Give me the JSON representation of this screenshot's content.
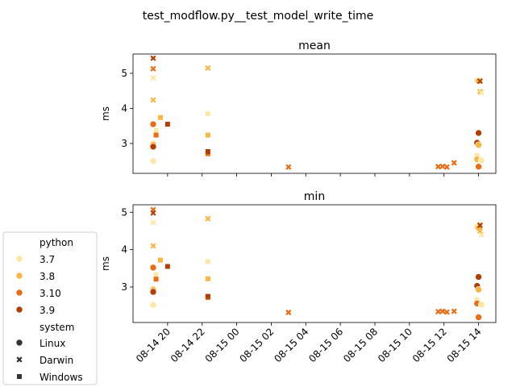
{
  "figure_title": "test_modflow.py__test_model_write_time",
  "colors": {
    "3.7": "#fde7a4",
    "3.8": "#fbb540",
    "3.10": "#ea6c14",
    "3.9": "#b33e03"
  },
  "legend": {
    "python_title": "python",
    "python_entries": [
      "3.7",
      "3.8",
      "3.10",
      "3.9"
    ],
    "system_title": "system",
    "system_entries": [
      {
        "label": "Linux",
        "marker": "circle"
      },
      {
        "label": "Darwin",
        "marker": "x"
      },
      {
        "label": "Windows",
        "marker": "square"
      }
    ]
  },
  "chart_data": [
    {
      "type": "scatter",
      "title": "mean",
      "ylabel": "ms",
      "xlabel": "",
      "x_axis": "datetime",
      "xlim": [
        "2023-08-14 18:00",
        "2023-08-15 15:00"
      ],
      "ylim": [
        2.15,
        5.55
      ],
      "yticks": [
        3,
        4,
        5
      ],
      "xticks": [
        "08-14 20",
        "08-14 22",
        "08-15 00",
        "08-15 02",
        "08-15 04",
        "08-15 06",
        "08-15 08",
        "08-15 10",
        "08-15 12",
        "08-15 14"
      ],
      "show_xtick_labels": false,
      "grid": false,
      "points": [
        {
          "x": "2023-08-14 19:10",
          "y": 2.5,
          "python": "3.7",
          "system": "Linux"
        },
        {
          "x": "2023-08-14 19:10",
          "y": 3.0,
          "python": "3.7",
          "system": "Linux"
        },
        {
          "x": "2023-08-14 19:10",
          "y": 2.97,
          "python": "3.8",
          "system": "Linux"
        },
        {
          "x": "2023-08-14 19:10",
          "y": 3.55,
          "python": "3.10",
          "system": "Linux"
        },
        {
          "x": "2023-08-14 19:10",
          "y": 2.91,
          "python": "3.9",
          "system": "Linux"
        },
        {
          "x": "2023-08-14 19:10",
          "y": 4.87,
          "python": "3.7",
          "system": "Darwin"
        },
        {
          "x": "2023-08-14 19:10",
          "y": 4.24,
          "python": "3.8",
          "system": "Darwin"
        },
        {
          "x": "2023-08-14 19:10",
          "y": 5.13,
          "python": "3.10",
          "system": "Darwin"
        },
        {
          "x": "2023-08-14 19:10",
          "y": 5.43,
          "python": "3.9",
          "system": "Darwin"
        },
        {
          "x": "2023-08-14 19:20",
          "y": 3.37,
          "python": "3.7",
          "system": "Windows"
        },
        {
          "x": "2023-08-14 19:20",
          "y": 3.24,
          "python": "3.10",
          "system": "Windows"
        },
        {
          "x": "2023-08-14 19:35",
          "y": 3.74,
          "python": "3.8",
          "system": "Windows"
        },
        {
          "x": "2023-08-14 20:00",
          "y": 3.55,
          "python": "3.9",
          "system": "Windows"
        },
        {
          "x": "2023-08-14 22:20",
          "y": 5.15,
          "python": "3.8",
          "system": "Darwin"
        },
        {
          "x": "2023-08-14 22:20",
          "y": 3.85,
          "python": "3.7",
          "system": "Windows"
        },
        {
          "x": "2023-08-14 22:20",
          "y": 3.24,
          "python": "3.8",
          "system": "Windows"
        },
        {
          "x": "2023-08-14 22:20",
          "y": 2.71,
          "python": "3.10",
          "system": "Windows"
        },
        {
          "x": "2023-08-14 22:20",
          "y": 2.77,
          "python": "3.9",
          "system": "Windows"
        },
        {
          "x": "2023-08-15 03:00",
          "y": 2.33,
          "python": "3.10",
          "system": "Darwin"
        },
        {
          "x": "2023-08-15 11:40",
          "y": 2.34,
          "python": "3.10",
          "system": "Darwin"
        },
        {
          "x": "2023-08-15 11:55",
          "y": 2.35,
          "python": "3.10",
          "system": "Darwin"
        },
        {
          "x": "2023-08-15 12:10",
          "y": 2.33,
          "python": "3.10",
          "system": "Darwin"
        },
        {
          "x": "2023-08-15 12:35",
          "y": 2.45,
          "python": "3.10",
          "system": "Darwin"
        },
        {
          "x": "2023-08-15 13:55",
          "y": 4.8,
          "python": "3.7",
          "system": "Linux"
        },
        {
          "x": "2023-08-15 13:55",
          "y": 2.65,
          "python": "3.7",
          "system": "Linux"
        },
        {
          "x": "2023-08-15 13:55",
          "y": 2.55,
          "python": "3.8",
          "system": "Linux"
        },
        {
          "x": "2023-08-15 13:55",
          "y": 3.02,
          "python": "3.9",
          "system": "Linux"
        },
        {
          "x": "2023-08-15 14:00",
          "y": 4.78,
          "python": "3.8",
          "system": "Linux"
        },
        {
          "x": "2023-08-15 14:00",
          "y": 2.96,
          "python": "3.8",
          "system": "Linux"
        },
        {
          "x": "2023-08-15 14:00",
          "y": 2.34,
          "python": "3.10",
          "system": "Linux"
        },
        {
          "x": "2023-08-15 14:00",
          "y": 3.3,
          "python": "3.9",
          "system": "Linux"
        },
        {
          "x": "2023-08-15 14:05",
          "y": 4.82,
          "python": "3.7",
          "system": "Darwin"
        },
        {
          "x": "2023-08-15 14:05",
          "y": 4.78,
          "python": "3.9",
          "system": "Darwin"
        },
        {
          "x": "2023-08-15 14:05",
          "y": 4.48,
          "python": "3.8",
          "system": "Darwin"
        },
        {
          "x": "2023-08-15 14:10",
          "y": 4.45,
          "python": "3.7",
          "system": "Darwin"
        },
        {
          "x": "2023-08-15 14:10",
          "y": 2.52,
          "python": "3.7",
          "system": "Linux"
        }
      ]
    },
    {
      "type": "scatter",
      "title": "min",
      "ylabel": "ms",
      "xlabel": "",
      "x_axis": "datetime",
      "xlim": [
        "2023-08-14 18:00",
        "2023-08-15 15:00"
      ],
      "ylim": [
        2.05,
        5.2
      ],
      "yticks": [
        3,
        4,
        5
      ],
      "xticks": [
        "08-14 20",
        "08-14 22",
        "08-15 00",
        "08-15 02",
        "08-15 04",
        "08-15 06",
        "08-15 08",
        "08-15 10",
        "08-15 12",
        "08-15 14"
      ],
      "show_xtick_labels": true,
      "grid": false,
      "points": [
        {
          "x": "2023-08-14 19:10",
          "y": 2.52,
          "python": "3.7",
          "system": "Linux"
        },
        {
          "x": "2023-08-14 19:10",
          "y": 2.96,
          "python": "3.7",
          "system": "Linux"
        },
        {
          "x": "2023-08-14 19:10",
          "y": 2.93,
          "python": "3.8",
          "system": "Linux"
        },
        {
          "x": "2023-08-14 19:10",
          "y": 3.52,
          "python": "3.10",
          "system": "Linux"
        },
        {
          "x": "2023-08-14 19:10",
          "y": 2.87,
          "python": "3.9",
          "system": "Linux"
        },
        {
          "x": "2023-08-14 19:10",
          "y": 4.73,
          "python": "3.7",
          "system": "Darwin"
        },
        {
          "x": "2023-08-14 19:10",
          "y": 4.1,
          "python": "3.8",
          "system": "Darwin"
        },
        {
          "x": "2023-08-14 19:10",
          "y": 5.07,
          "python": "3.10",
          "system": "Darwin"
        },
        {
          "x": "2023-08-14 19:10",
          "y": 4.98,
          "python": "3.9",
          "system": "Darwin"
        },
        {
          "x": "2023-08-14 19:20",
          "y": 3.33,
          "python": "3.7",
          "system": "Windows"
        },
        {
          "x": "2023-08-14 19:20",
          "y": 3.21,
          "python": "3.10",
          "system": "Windows"
        },
        {
          "x": "2023-08-14 19:35",
          "y": 3.72,
          "python": "3.8",
          "system": "Windows"
        },
        {
          "x": "2023-08-14 20:00",
          "y": 3.55,
          "python": "3.9",
          "system": "Windows"
        },
        {
          "x": "2023-08-14 22:20",
          "y": 4.83,
          "python": "3.8",
          "system": "Darwin"
        },
        {
          "x": "2023-08-14 22:20",
          "y": 3.68,
          "python": "3.7",
          "system": "Windows"
        },
        {
          "x": "2023-08-14 22:20",
          "y": 3.22,
          "python": "3.8",
          "system": "Windows"
        },
        {
          "x": "2023-08-14 22:20",
          "y": 2.72,
          "python": "3.10",
          "system": "Windows"
        },
        {
          "x": "2023-08-14 22:20",
          "y": 2.75,
          "python": "3.9",
          "system": "Windows"
        },
        {
          "x": "2023-08-15 03:00",
          "y": 2.32,
          "python": "3.10",
          "system": "Darwin"
        },
        {
          "x": "2023-08-15 11:40",
          "y": 2.34,
          "python": "3.10",
          "system": "Darwin"
        },
        {
          "x": "2023-08-15 11:55",
          "y": 2.35,
          "python": "3.10",
          "system": "Darwin"
        },
        {
          "x": "2023-08-15 12:10",
          "y": 2.33,
          "python": "3.10",
          "system": "Darwin"
        },
        {
          "x": "2023-08-15 12:35",
          "y": 2.35,
          "python": "3.10",
          "system": "Darwin"
        },
        {
          "x": "2023-08-15 13:55",
          "y": 4.62,
          "python": "3.7",
          "system": "Linux"
        },
        {
          "x": "2023-08-15 13:55",
          "y": 2.65,
          "python": "3.7",
          "system": "Linux"
        },
        {
          "x": "2023-08-15 13:55",
          "y": 2.56,
          "python": "3.10",
          "system": "Linux"
        },
        {
          "x": "2023-08-15 13:55",
          "y": 3.03,
          "python": "3.9",
          "system": "Linux"
        },
        {
          "x": "2023-08-15 14:00",
          "y": 4.58,
          "python": "3.8",
          "system": "Linux"
        },
        {
          "x": "2023-08-15 14:00",
          "y": 2.93,
          "python": "3.8",
          "system": "Linux"
        },
        {
          "x": "2023-08-15 14:00",
          "y": 2.19,
          "python": "3.10",
          "system": "Linux"
        },
        {
          "x": "2023-08-15 14:00",
          "y": 3.27,
          "python": "3.9",
          "system": "Linux"
        },
        {
          "x": "2023-08-15 14:05",
          "y": 4.68,
          "python": "3.7",
          "system": "Darwin"
        },
        {
          "x": "2023-08-15 14:05",
          "y": 4.65,
          "python": "3.9",
          "system": "Darwin"
        },
        {
          "x": "2023-08-15 14:05",
          "y": 4.5,
          "python": "3.8",
          "system": "Darwin"
        },
        {
          "x": "2023-08-15 14:10",
          "y": 4.4,
          "python": "3.7",
          "system": "Darwin"
        },
        {
          "x": "2023-08-15 14:10",
          "y": 2.53,
          "python": "3.7",
          "system": "Linux"
        }
      ]
    }
  ]
}
